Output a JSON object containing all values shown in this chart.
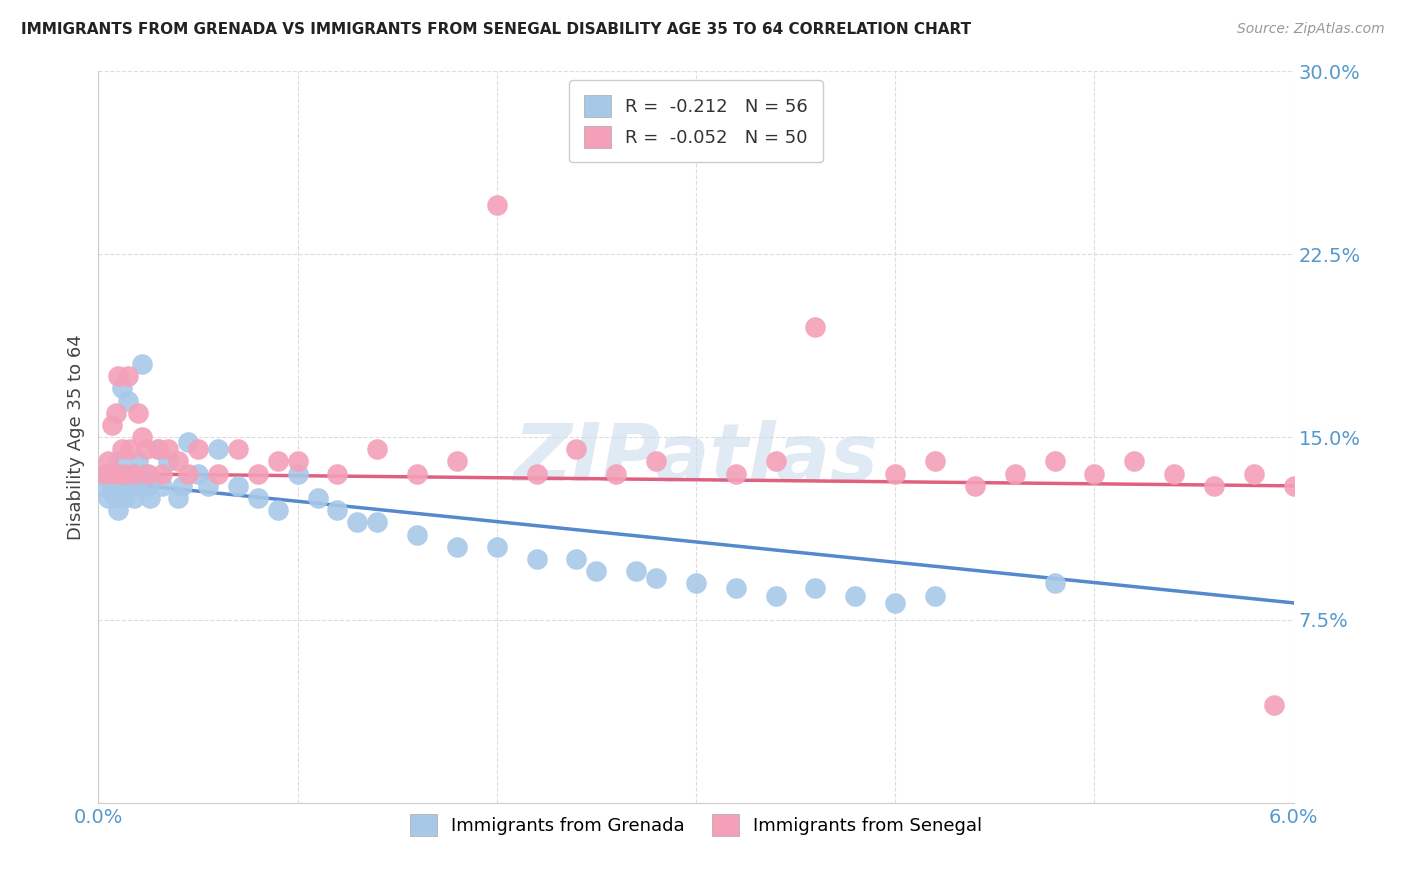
{
  "title": "IMMIGRANTS FROM GRENADA VS IMMIGRANTS FROM SENEGAL DISABILITY AGE 35 TO 64 CORRELATION CHART",
  "source": "Source: ZipAtlas.com",
  "xlabel_grenada": "Immigrants from Grenada",
  "xlabel_senegal": "Immigrants from Senegal",
  "ylabel": "Disability Age 35 to 64",
  "xmin": 0.0,
  "xmax": 0.06,
  "ymin": 0.0,
  "ymax": 0.3,
  "r_grenada": -0.212,
  "n_grenada": 56,
  "r_senegal": -0.052,
  "n_senegal": 50,
  "color_grenada": "#a8c8e8",
  "color_senegal": "#f4a0b8",
  "trendline_grenada": "#5588cc",
  "trendline_senegal": "#e06080",
  "watermark": "ZIPatlas",
  "grenada_x": [
    0.0003,
    0.0004,
    0.0005,
    0.0006,
    0.0007,
    0.0008,
    0.0009,
    0.001,
    0.001,
    0.0011,
    0.0012,
    0.0013,
    0.0014,
    0.0015,
    0.0016,
    0.0017,
    0.0018,
    0.002,
    0.002,
    0.0022,
    0.0024,
    0.0025,
    0.0026,
    0.003,
    0.0032,
    0.0035,
    0.004,
    0.0042,
    0.0045,
    0.005,
    0.0055,
    0.006,
    0.007,
    0.008,
    0.009,
    0.01,
    0.011,
    0.012,
    0.013,
    0.014,
    0.016,
    0.018,
    0.02,
    0.022,
    0.024,
    0.025,
    0.027,
    0.028,
    0.03,
    0.032,
    0.034,
    0.036,
    0.038,
    0.04,
    0.042,
    0.048
  ],
  "grenada_y": [
    0.13,
    0.135,
    0.125,
    0.132,
    0.128,
    0.13,
    0.125,
    0.14,
    0.12,
    0.135,
    0.17,
    0.125,
    0.13,
    0.165,
    0.135,
    0.13,
    0.125,
    0.13,
    0.14,
    0.18,
    0.135,
    0.13,
    0.125,
    0.145,
    0.13,
    0.14,
    0.125,
    0.13,
    0.148,
    0.135,
    0.13,
    0.145,
    0.13,
    0.125,
    0.12,
    0.135,
    0.125,
    0.12,
    0.115,
    0.115,
    0.11,
    0.105,
    0.105,
    0.1,
    0.1,
    0.095,
    0.095,
    0.092,
    0.09,
    0.088,
    0.085,
    0.088,
    0.085,
    0.082,
    0.085,
    0.09
  ],
  "senegal_x": [
    0.0003,
    0.0005,
    0.0007,
    0.0008,
    0.0009,
    0.001,
    0.0012,
    0.0013,
    0.0015,
    0.0016,
    0.0018,
    0.002,
    0.0022,
    0.0024,
    0.0025,
    0.003,
    0.0032,
    0.0035,
    0.004,
    0.0045,
    0.005,
    0.006,
    0.007,
    0.008,
    0.009,
    0.01,
    0.012,
    0.014,
    0.016,
    0.018,
    0.02,
    0.022,
    0.024,
    0.026,
    0.028,
    0.032,
    0.034,
    0.036,
    0.04,
    0.042,
    0.044,
    0.046,
    0.048,
    0.05,
    0.052,
    0.054,
    0.056,
    0.058,
    0.06,
    0.059
  ],
  "senegal_y": [
    0.135,
    0.14,
    0.155,
    0.135,
    0.16,
    0.175,
    0.145,
    0.135,
    0.175,
    0.145,
    0.135,
    0.16,
    0.15,
    0.145,
    0.135,
    0.145,
    0.135,
    0.145,
    0.14,
    0.135,
    0.145,
    0.135,
    0.145,
    0.135,
    0.14,
    0.14,
    0.135,
    0.145,
    0.135,
    0.14,
    0.245,
    0.135,
    0.145,
    0.135,
    0.14,
    0.135,
    0.14,
    0.195,
    0.135,
    0.14,
    0.13,
    0.135,
    0.14,
    0.135,
    0.14,
    0.135,
    0.13,
    0.135,
    0.13,
    0.04
  ]
}
